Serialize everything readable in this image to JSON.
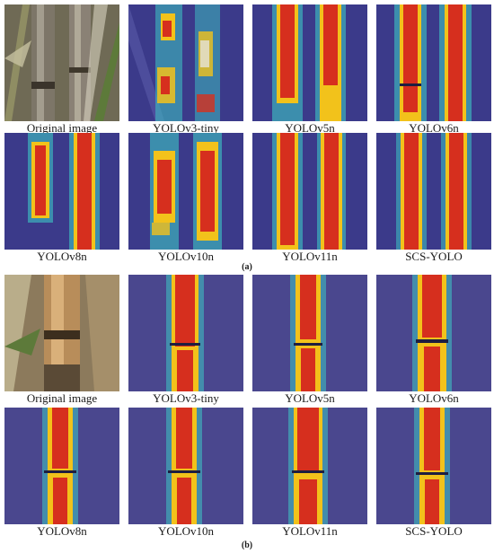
{
  "figure": {
    "panel_a": {
      "label": "(a)",
      "tiles": [
        {
          "caption": "Original image",
          "kind": "photo"
        },
        {
          "caption": "YOLOv3-tiny",
          "kind": "heatmap"
        },
        {
          "caption": "YOLOv5n",
          "kind": "heatmap"
        },
        {
          "caption": "YOLOv6n",
          "kind": "heatmap"
        },
        {
          "caption": "YOLOv8n",
          "kind": "heatmap"
        },
        {
          "caption": "YOLOv10n",
          "kind": "heatmap"
        },
        {
          "caption": "YOLOv11n",
          "kind": "heatmap"
        },
        {
          "caption": "SCS-YOLO",
          "kind": "heatmap"
        }
      ]
    },
    "panel_b": {
      "label": "(b)",
      "tiles": [
        {
          "caption": "Original image",
          "kind": "photo"
        },
        {
          "caption": "YOLOv3-tiny",
          "kind": "heatmap"
        },
        {
          "caption": "YOLOv5n",
          "kind": "heatmap"
        },
        {
          "caption": "YOLOv6n",
          "kind": "heatmap"
        },
        {
          "caption": "YOLOv8n",
          "kind": "heatmap"
        },
        {
          "caption": "YOLOv10n",
          "kind": "heatmap"
        },
        {
          "caption": "YOLOv11n",
          "kind": "heatmap"
        },
        {
          "caption": "SCS-YOLO",
          "kind": "heatmap"
        }
      ]
    },
    "colors": {
      "heatmap_background": "#3b3a8a",
      "heatmap_hot": "#d62f1e",
      "heatmap_warm": "#f2c21b",
      "heatmap_cool": "#3ec6c4",
      "photo_stalk": "#8a8175",
      "photo_leaves": "#5d7a3a"
    }
  }
}
